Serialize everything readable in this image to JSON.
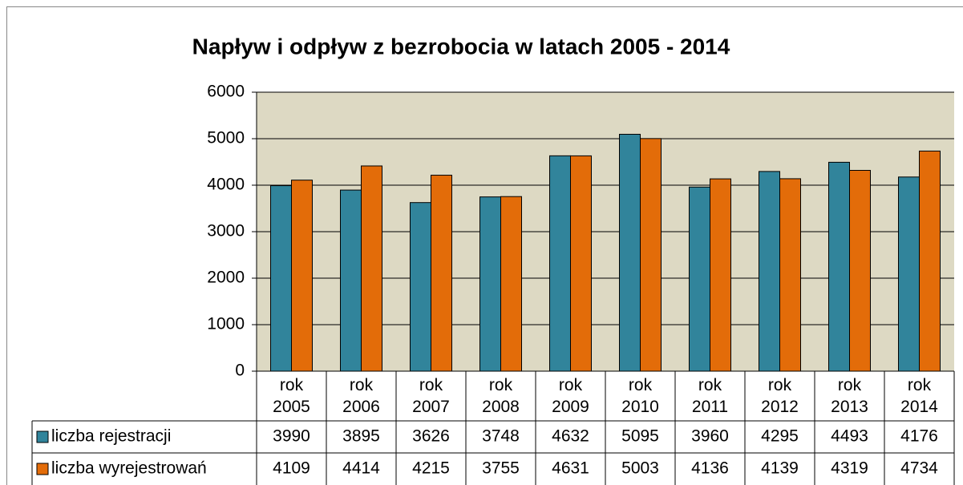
{
  "chart_data": {
    "type": "bar",
    "title": "Napływ i odpływ z bezrobocia w latach 2005 - 2014",
    "categories": [
      "rok 2005",
      "rok 2006",
      "rok 2007",
      "rok 2008",
      "rok 2009",
      "rok 2010",
      "rok 2011",
      "rok 2012",
      "rok 2013",
      "rok 2014"
    ],
    "series": [
      {
        "name": "liczba rejestracji",
        "color": "#31849b",
        "values": [
          3990,
          3895,
          3626,
          3748,
          4632,
          5095,
          3960,
          4295,
          4493,
          4176
        ]
      },
      {
        "name": "liczba wyrejestrowań",
        "color": "#e36c09",
        "values": [
          4109,
          4414,
          4215,
          3755,
          4631,
          5003,
          4136,
          4139,
          4319,
          4734
        ]
      }
    ],
    "ylim": [
      0,
      6000
    ],
    "yticks": [
      0,
      1000,
      2000,
      3000,
      4000,
      5000,
      6000
    ],
    "grid": true,
    "plot_background": "#ddd9c3"
  }
}
